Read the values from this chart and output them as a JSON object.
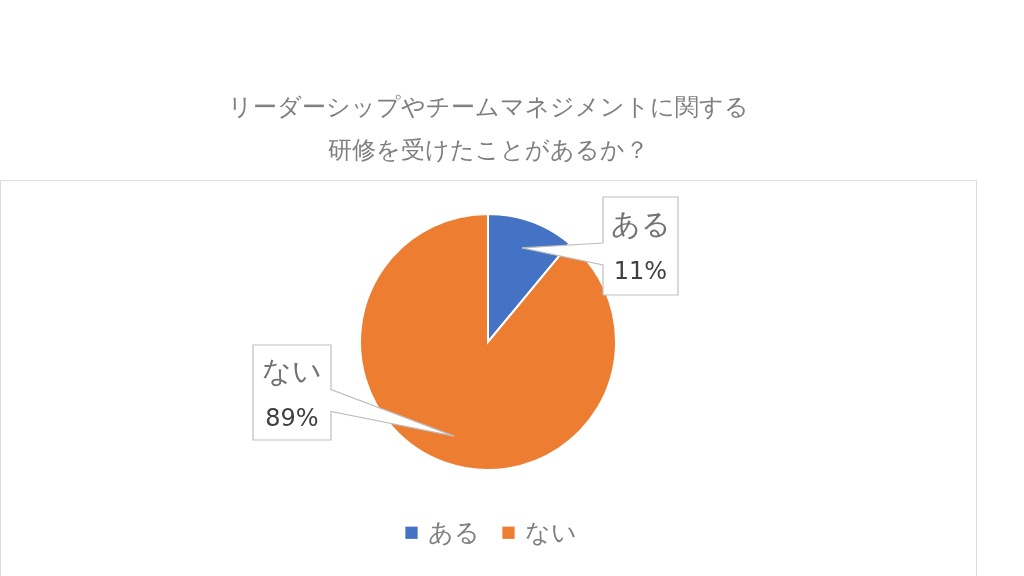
{
  "chart_data": {
    "type": "pie",
    "title": "リーダーシップやチームマネジメントに関する研修を受けたことがあるか？",
    "categories": [
      "ある",
      "ない"
    ],
    "values": [
      11,
      89
    ],
    "colors": [
      "#4472c4",
      "#ed7d31"
    ],
    "value_labels": [
      "11%",
      "89%"
    ],
    "legend": "bottom"
  }
}
